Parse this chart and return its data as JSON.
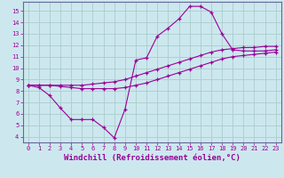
{
  "xlabel": "Windchill (Refroidissement éolien,°C)",
  "ylabel": "",
  "bg_color": "#cce8ee",
  "grid_color": "#aacccc",
  "line_color": "#990099",
  "spine_color": "#666699",
  "xlim": [
    -0.5,
    23.5
  ],
  "ylim": [
    3.5,
    15.8
  ],
  "xticks": [
    0,
    1,
    2,
    3,
    4,
    5,
    6,
    7,
    8,
    9,
    10,
    11,
    12,
    13,
    14,
    15,
    16,
    17,
    18,
    19,
    20,
    21,
    22,
    23
  ],
  "yticks": [
    4,
    5,
    6,
    7,
    8,
    9,
    10,
    11,
    12,
    13,
    14,
    15
  ],
  "line1_x": [
    0,
    1,
    2,
    3,
    4,
    5,
    6,
    7,
    8,
    9,
    10,
    11,
    12,
    13,
    14,
    15,
    16,
    17,
    18,
    19,
    20,
    21,
    22,
    23
  ],
  "line1_y": [
    8.5,
    8.3,
    7.6,
    6.5,
    5.5,
    5.5,
    5.5,
    4.8,
    3.9,
    6.4,
    10.7,
    10.9,
    12.8,
    13.5,
    14.3,
    15.4,
    15.4,
    14.9,
    13.0,
    11.6,
    11.5,
    11.5,
    11.5,
    11.6
  ],
  "line2_x": [
    0,
    1,
    2,
    3,
    4,
    5,
    6,
    7,
    8,
    9,
    10,
    11,
    12,
    13,
    14,
    15,
    16,
    17,
    18,
    19,
    20,
    21,
    22,
    23
  ],
  "line2_y": [
    8.5,
    8.5,
    8.5,
    8.5,
    8.5,
    8.5,
    8.6,
    8.7,
    8.8,
    9.0,
    9.3,
    9.6,
    9.9,
    10.2,
    10.5,
    10.8,
    11.1,
    11.4,
    11.6,
    11.7,
    11.8,
    11.8,
    11.9,
    11.9
  ],
  "line3_x": [
    0,
    1,
    2,
    3,
    4,
    5,
    6,
    7,
    8,
    9,
    10,
    11,
    12,
    13,
    14,
    15,
    16,
    17,
    18,
    19,
    20,
    21,
    22,
    23
  ],
  "line3_y": [
    8.5,
    8.5,
    8.5,
    8.4,
    8.3,
    8.2,
    8.2,
    8.2,
    8.2,
    8.3,
    8.5,
    8.7,
    9.0,
    9.3,
    9.6,
    9.9,
    10.2,
    10.5,
    10.8,
    11.0,
    11.1,
    11.2,
    11.3,
    11.4
  ],
  "marker": "+",
  "markersize": 3.5,
  "linewidth": 0.8,
  "tick_fontsize": 5.0,
  "label_fontsize": 6.5,
  "markeredgewidth": 0.9
}
